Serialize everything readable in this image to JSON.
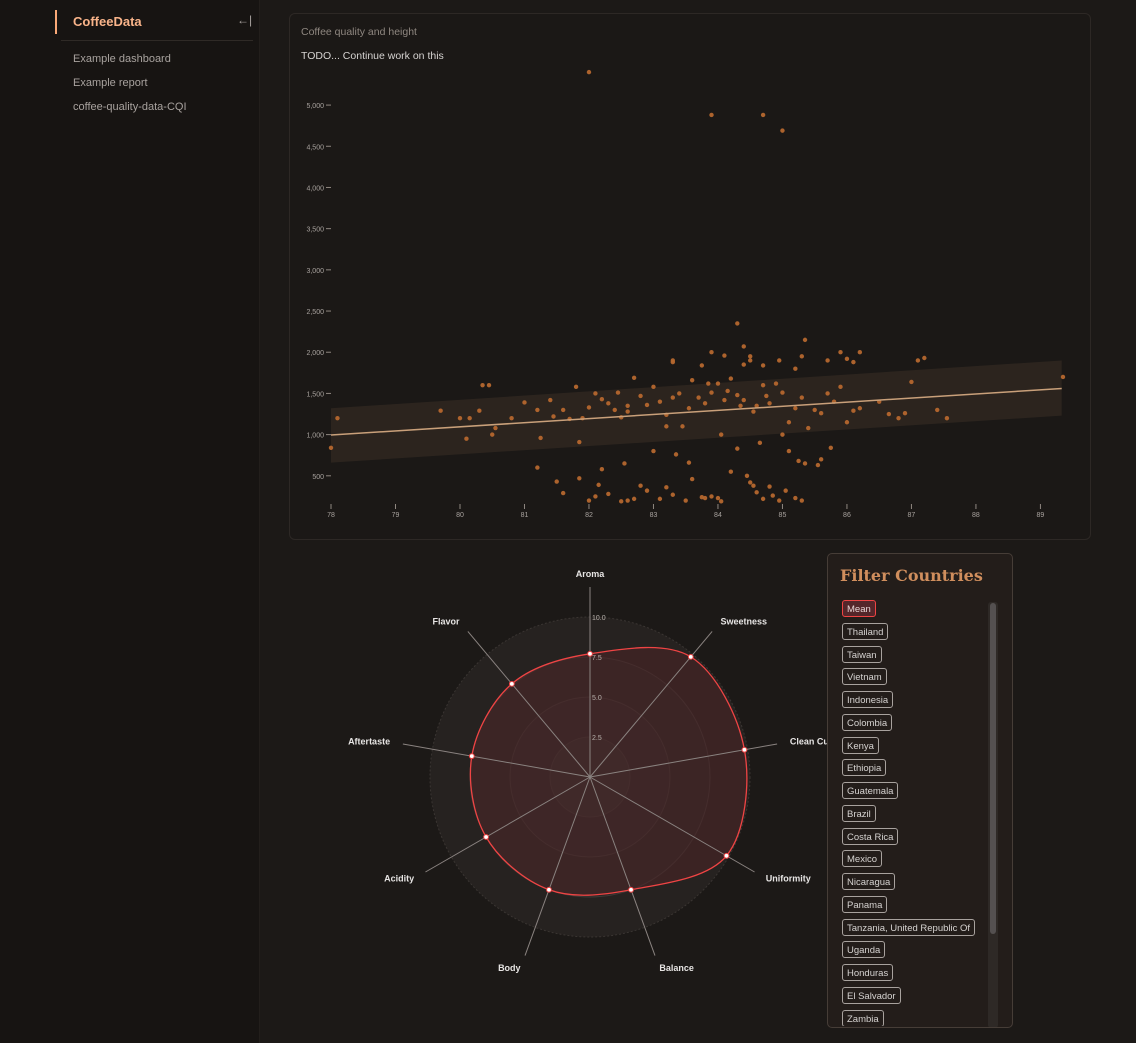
{
  "sidebar": {
    "brand": "CoffeeData",
    "collapse_icon": "←|",
    "items": [
      {
        "label": "Example dashboard"
      },
      {
        "label": "Example report"
      },
      {
        "label": "coffee-quality-data-CQI"
      }
    ]
  },
  "scatter_panel": {
    "title": "Coffee quality and height",
    "subtitle": "TODO... Continue work on this"
  },
  "filter": {
    "title": "Filter Countries",
    "items": [
      "Mean",
      "Thailand",
      "Taiwan",
      "Vietnam",
      "Indonesia",
      "Colombia",
      "Kenya",
      "Ethiopia",
      "Guatemala",
      "Brazil",
      "Costa Rica",
      "Mexico",
      "Nicaragua",
      "Panama",
      "Tanzania, United Republic Of",
      "Uganda",
      "Honduras",
      "El Salvador",
      "Zambia"
    ],
    "selected": "Mean"
  },
  "colors": {
    "accent": "#f9a877",
    "point": "#b5672e",
    "trend": "#c9a07a",
    "radar_line": "#ef4444",
    "radar_fill": "#4a2527"
  },
  "chart_data": [
    {
      "type": "scatter",
      "title": "",
      "xlabel": "",
      "ylabel": "",
      "xlim": [
        78,
        89.35
      ],
      "ylim": [
        0,
        5450
      ],
      "x_ticks": [
        78,
        79,
        80,
        81,
        82,
        83,
        84,
        85,
        86,
        87,
        88,
        89
      ],
      "y_ticks": [
        500,
        1000,
        1500,
        2000,
        2500,
        3000,
        3500,
        4000,
        4500,
        5000
      ],
      "trend": {
        "x": [
          78,
          89.33
        ],
        "y": [
          995,
          1560
        ]
      },
      "band_upper": {
        "x": [
          78,
          89.33
        ],
        "y": [
          1320,
          1900
        ]
      },
      "band_lower": {
        "x": [
          78,
          89.33
        ],
        "y": [
          660,
          1230
        ]
      },
      "points": [
        [
          82,
          5400
        ],
        [
          83.9,
          4880
        ],
        [
          84.7,
          4880
        ],
        [
          85,
          4690
        ],
        [
          84.3,
          2350
        ],
        [
          85.35,
          2150
        ],
        [
          85.3,
          1950
        ],
        [
          84.5,
          1950
        ],
        [
          84.5,
          1900
        ],
        [
          85.7,
          1900
        ],
        [
          86,
          1920
        ],
        [
          86.1,
          1880
        ],
        [
          86.2,
          2000
        ],
        [
          85.9,
          2000
        ],
        [
          87.1,
          1900
        ],
        [
          87.2,
          1930
        ],
        [
          84.7,
          1840
        ],
        [
          84.4,
          1850
        ],
        [
          83.3,
          1900
        ],
        [
          83.3,
          1880
        ],
        [
          83.75,
          1840
        ],
        [
          84.95,
          1900
        ],
        [
          85.2,
          1800
        ],
        [
          84.4,
          2070
        ],
        [
          83.9,
          2000
        ],
        [
          84.1,
          1960
        ],
        [
          78,
          840
        ],
        [
          78.1,
          1200
        ],
        [
          79.7,
          1290
        ],
        [
          80,
          1200
        ],
        [
          80.15,
          1200
        ],
        [
          80.3,
          1290
        ],
        [
          80.35,
          1600
        ],
        [
          80.45,
          1600
        ],
        [
          80.5,
          1000
        ],
        [
          80.55,
          1080
        ],
        [
          80.1,
          950
        ],
        [
          80.8,
          1200
        ],
        [
          81,
          1390
        ],
        [
          81.2,
          1300
        ],
        [
          81.4,
          1420
        ],
        [
          81.45,
          1220
        ],
        [
          81.6,
          1300
        ],
        [
          81.7,
          1190
        ],
        [
          81.8,
          1580
        ],
        [
          81.9,
          1200
        ],
        [
          82,
          1330
        ],
        [
          82.1,
          1500
        ],
        [
          82.2,
          1430
        ],
        [
          82.3,
          1380
        ],
        [
          82.4,
          1300
        ],
        [
          82.45,
          1510
        ],
        [
          82.5,
          1210
        ],
        [
          82.6,
          1350
        ],
        [
          82.7,
          1690
        ],
        [
          82.8,
          1470
        ],
        [
          82.9,
          1360
        ],
        [
          83.0,
          1580
        ],
        [
          83.1,
          1400
        ],
        [
          83.2,
          1240
        ],
        [
          83.3,
          1450
        ],
        [
          83.4,
          1500
        ],
        [
          83.45,
          1100
        ],
        [
          83.55,
          1320
        ],
        [
          83.6,
          1660
        ],
        [
          83.7,
          1450
        ],
        [
          83.8,
          1380
        ],
        [
          83.85,
          1620
        ],
        [
          83.9,
          1510
        ],
        [
          84.0,
          1620
        ],
        [
          84.1,
          1420
        ],
        [
          84.15,
          1530
        ],
        [
          84.2,
          1680
        ],
        [
          84.3,
          1480
        ],
        [
          84.35,
          1350
        ],
        [
          84.4,
          1420
        ],
        [
          84.55,
          1280
        ],
        [
          84.6,
          1350
        ],
        [
          84.7,
          1600
        ],
        [
          84.75,
          1470
        ],
        [
          84.8,
          1380
        ],
        [
          84.9,
          1620
        ],
        [
          85.0,
          1510
        ],
        [
          85.1,
          1150
        ],
        [
          85.2,
          1320
        ],
        [
          85.3,
          1450
        ],
        [
          85.4,
          1080
        ],
        [
          85.5,
          1300
        ],
        [
          85.6,
          1260
        ],
        [
          85.7,
          1500
        ],
        [
          85.8,
          1400
        ],
        [
          85.9,
          1580
        ],
        [
          86.0,
          1150
        ],
        [
          86.1,
          1290
        ],
        [
          86.2,
          1320
        ],
        [
          86.5,
          1400
        ],
        [
          86.65,
          1250
        ],
        [
          86.8,
          1200
        ],
        [
          86.9,
          1260
        ],
        [
          87.0,
          1640
        ],
        [
          87.4,
          1300
        ],
        [
          87.55,
          1200
        ],
        [
          89.35,
          1700
        ],
        [
          81.2,
          600
        ],
        [
          81.5,
          430
        ],
        [
          81.6,
          290
        ],
        [
          81.85,
          470
        ],
        [
          82.0,
          200
        ],
        [
          82.1,
          250
        ],
        [
          82.15,
          390
        ],
        [
          82.2,
          580
        ],
        [
          82.3,
          280
        ],
        [
          82.5,
          190
        ],
        [
          82.55,
          650
        ],
        [
          82.6,
          200
        ],
        [
          82.7,
          220
        ],
        [
          82.8,
          380
        ],
        [
          82.9,
          320
        ],
        [
          83.0,
          800
        ],
        [
          83.1,
          220
        ],
        [
          83.2,
          360
        ],
        [
          83.3,
          270
        ],
        [
          83.35,
          760
        ],
        [
          83.5,
          200
        ],
        [
          83.55,
          660
        ],
        [
          83.6,
          460
        ],
        [
          83.75,
          240
        ],
        [
          83.8,
          230
        ],
        [
          83.9,
          250
        ],
        [
          84.0,
          230
        ],
        [
          84.05,
          190
        ],
        [
          84.2,
          550
        ],
        [
          84.3,
          830
        ],
        [
          84.45,
          500
        ],
        [
          84.5,
          420
        ],
        [
          84.55,
          380
        ],
        [
          84.6,
          300
        ],
        [
          84.7,
          220
        ],
        [
          84.8,
          370
        ],
        [
          84.85,
          260
        ],
        [
          84.95,
          200
        ],
        [
          85.05,
          320
        ],
        [
          85.1,
          800
        ],
        [
          85.2,
          230
        ],
        [
          85.25,
          680
        ],
        [
          85.3,
          200
        ],
        [
          85.35,
          650
        ],
        [
          85.55,
          630
        ],
        [
          85.6,
          700
        ],
        [
          85.75,
          840
        ],
        [
          82.6,
          1280
        ],
        [
          83.2,
          1100
        ],
        [
          84.05,
          1000
        ],
        [
          84.65,
          900
        ],
        [
          85.0,
          1000
        ],
        [
          81.25,
          960
        ],
        [
          81.85,
          910
        ]
      ]
    },
    {
      "type": "radar",
      "categories": [
        "Aroma",
        "Sweetness",
        "Clean Cup",
        "Uniformity",
        "Balance",
        "Body",
        "Acidity",
        "Aftertaste",
        "Flavor"
      ],
      "rlim": [
        0,
        10
      ],
      "r_ticks": [
        2.5,
        5.0,
        7.5,
        10.0
      ],
      "series": [
        {
          "values": [
            7.7,
            9.8,
            9.8,
            9.85,
            7.5,
            7.5,
            7.5,
            7.5,
            7.6
          ]
        }
      ]
    }
  ]
}
